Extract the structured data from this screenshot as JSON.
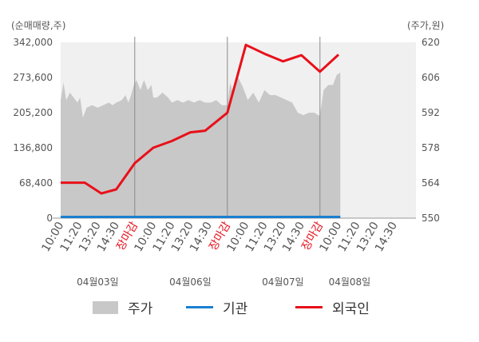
{
  "chart_data": {
    "type": "line",
    "left_axis_title": "(순매매량,주)",
    "right_axis_title": "(주가,원)",
    "left_ticks": [
      "342,000",
      "273,600",
      "205,200",
      "136,800",
      "68,400",
      "0"
    ],
    "left_ylim": [
      0,
      342000
    ],
    "right_ticks": [
      "620",
      "606",
      "592",
      "578",
      "564",
      "550"
    ],
    "right_ylim": [
      550,
      620
    ],
    "x_tick_labels": [
      {
        "label": "10:00",
        "pos": 0,
        "marker": false
      },
      {
        "label": "11:20",
        "pos": 1,
        "marker": false
      },
      {
        "label": "13:20",
        "pos": 2,
        "marker": false
      },
      {
        "label": "14:30",
        "pos": 3,
        "marker": false
      },
      {
        "label": "장마감",
        "pos": 4,
        "marker": true
      },
      {
        "label": "10:00",
        "pos": 5,
        "marker": false
      },
      {
        "label": "11:20",
        "pos": 6,
        "marker": false
      },
      {
        "label": "13:20",
        "pos": 7,
        "marker": false
      },
      {
        "label": "14:30",
        "pos": 8,
        "marker": false
      },
      {
        "label": "장마감",
        "pos": 9,
        "marker": true
      },
      {
        "label": "10:00",
        "pos": 10,
        "marker": false
      },
      {
        "label": "11:20",
        "pos": 11,
        "marker": false
      },
      {
        "label": "13:20",
        "pos": 12,
        "marker": false
      },
      {
        "label": "14:30",
        "pos": 13,
        "marker": false
      },
      {
        "label": "장마감",
        "pos": 14,
        "marker": true
      },
      {
        "label": "10:00",
        "pos": 15,
        "marker": false
      },
      {
        "label": "11:20",
        "pos": 16,
        "marker": false
      },
      {
        "label": "13:20",
        "pos": 17,
        "marker": false
      },
      {
        "label": "14:30",
        "pos": 18,
        "marker": false
      }
    ],
    "dates": [
      {
        "label": "04월03일",
        "pos": 2
      },
      {
        "label": "04월06일",
        "pos": 7
      },
      {
        "label": "04월07일",
        "pos": 12
      },
      {
        "label": "04월08일",
        "pos": 15.6
      }
    ],
    "day_dividers": [
      4,
      9,
      14
    ],
    "price_series": {
      "name": "주가",
      "color": "#c8c8c8",
      "points": [
        [
          0,
          597
        ],
        [
          0.15,
          604
        ],
        [
          0.3,
          597
        ],
        [
          0.5,
          600
        ],
        [
          0.7,
          598
        ],
        [
          0.9,
          596
        ],
        [
          1.05,
          598
        ],
        [
          1.2,
          590
        ],
        [
          1.4,
          594
        ],
        [
          1.7,
          595
        ],
        [
          2.0,
          594
        ],
        [
          2.3,
          595
        ],
        [
          2.6,
          596
        ],
        [
          2.8,
          595
        ],
        [
          3.0,
          596
        ],
        [
          3.3,
          597
        ],
        [
          3.5,
          599
        ],
        [
          3.65,
          596
        ],
        [
          3.8,
          599
        ],
        [
          3.95,
          603
        ],
        [
          4.1,
          605
        ],
        [
          4.3,
          601
        ],
        [
          4.5,
          605
        ],
        [
          4.7,
          601
        ],
        [
          4.9,
          603
        ],
        [
          5.0,
          598
        ],
        [
          5.2,
          598
        ],
        [
          5.5,
          600
        ],
        [
          5.8,
          598
        ],
        [
          6.0,
          596
        ],
        [
          6.3,
          597
        ],
        [
          6.6,
          596
        ],
        [
          6.9,
          597
        ],
        [
          7.2,
          596
        ],
        [
          7.5,
          597
        ],
        [
          7.8,
          596
        ],
        [
          8.1,
          596
        ],
        [
          8.4,
          597
        ],
        [
          8.7,
          595
        ],
        [
          9.0,
          595
        ],
        [
          9.15,
          604
        ],
        [
          9.3,
          600
        ],
        [
          9.5,
          607
        ],
        [
          9.65,
          605
        ],
        [
          9.85,
          602
        ],
        [
          10.1,
          597
        ],
        [
          10.4,
          600
        ],
        [
          10.7,
          596
        ],
        [
          11.0,
          601
        ],
        [
          11.3,
          599
        ],
        [
          11.6,
          599
        ],
        [
          11.9,
          598
        ],
        [
          12.2,
          597
        ],
        [
          12.5,
          596
        ],
        [
          12.8,
          592
        ],
        [
          13.1,
          591
        ],
        [
          13.4,
          592
        ],
        [
          13.7,
          592
        ],
        [
          13.9,
          591
        ],
        [
          14.0,
          591
        ],
        [
          14.2,
          601
        ],
        [
          14.45,
          603
        ],
        [
          14.7,
          603
        ],
        [
          14.9,
          607
        ],
        [
          15.1,
          608
        ]
      ]
    },
    "inst_series": {
      "name": "기관",
      "color": "#1a7fd0",
      "points": [
        [
          0,
          0
        ],
        [
          15.1,
          0
        ]
      ]
    },
    "foreign_series": {
      "name": "외국인",
      "color": "#e8101a",
      "points": [
        [
          0,
          69000
        ],
        [
          1.3,
          69000
        ],
        [
          2.2,
          48000
        ],
        [
          3.0,
          56000
        ],
        [
          4.0,
          107000
        ],
        [
          5.0,
          137000
        ],
        [
          6.0,
          150000
        ],
        [
          7.0,
          167000
        ],
        [
          7.8,
          170000
        ],
        [
          9.0,
          205000
        ],
        [
          10.0,
          337000
        ],
        [
          11.0,
          320000
        ],
        [
          12.0,
          305000
        ],
        [
          13.0,
          317000
        ],
        [
          14.0,
          285000
        ],
        [
          15.0,
          318000
        ]
      ]
    }
  },
  "legend": {
    "price": "주가",
    "institution": "기관",
    "foreign": "외국인"
  }
}
